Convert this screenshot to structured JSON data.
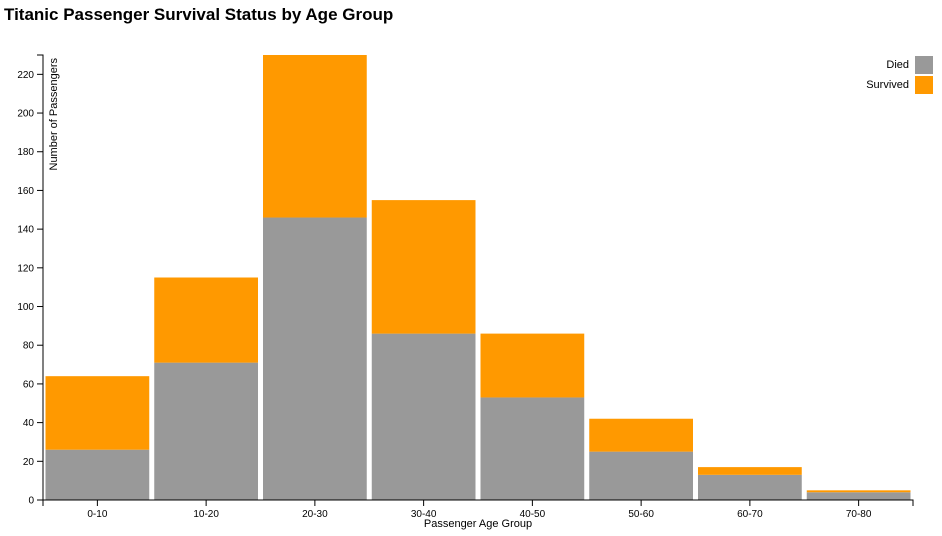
{
  "chart_data": {
    "type": "bar",
    "stacked": true,
    "title": "Titanic Passenger Survival Status by Age Group",
    "xlabel": "Passenger Age Group",
    "ylabel": "Number of Passengers",
    "categories": [
      "0-10",
      "10-20",
      "20-30",
      "30-40",
      "40-50",
      "50-60",
      "60-70",
      "70-80"
    ],
    "series": [
      {
        "name": "Died",
        "color": "#999999",
        "values": [
          26,
          71,
          146,
          86,
          53,
          25,
          13,
          4
        ]
      },
      {
        "name": "Survived",
        "color": "#ff9900",
        "values": [
          38,
          44,
          84,
          69,
          33,
          17,
          4,
          1
        ]
      }
    ],
    "ylim": [
      0,
      230
    ],
    "yticks": [
      0,
      20,
      40,
      60,
      80,
      100,
      120,
      140,
      160,
      180,
      200,
      220
    ],
    "grid": false,
    "legend_position": "top-right"
  }
}
